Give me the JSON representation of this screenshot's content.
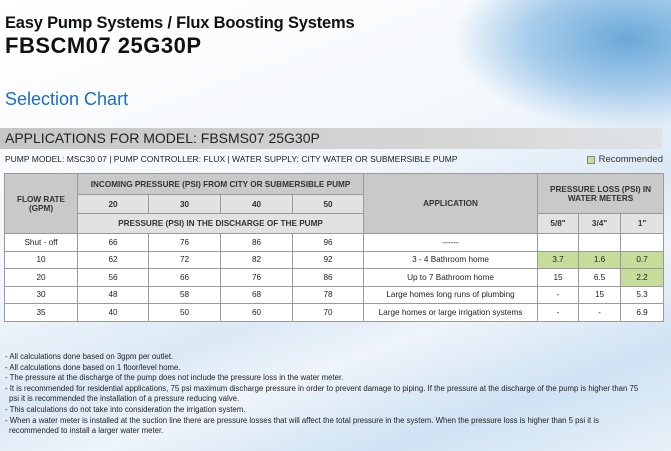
{
  "header": {
    "brand": "Easy Pump Systems / Flux Boosting Systems",
    "model": "FBSCM07 25G30P",
    "subtitle": "Selection Chart"
  },
  "banner": "APPLICATIONS FOR MODEL: FBSMS07 25G30P",
  "info": "PUMP MODEL: MSC30 07 |  PUMP CONTROLLER: FLUX  |  WATER SUPPLY:  CITY WATER OR SUBMERSIBLE PUMP",
  "legend": {
    "label": "Recommended",
    "color": "#c5dc9a"
  },
  "table": {
    "flow_header": "FLOW RATE (GPM)",
    "incoming_header": "INCOMING PRESSURE (PSI) FROM CITY OR SUBMERSIBLE PUMP",
    "incoming_values": [
      "20",
      "30",
      "40",
      "50"
    ],
    "discharge_header": "PRESSURE (PSI) IN THE DISCHARGE OF THE PUMP",
    "application_header": "APPLICATION",
    "loss_header": "PRESSURE LOSS (PSI) IN WATER METERS",
    "meters": [
      "5/8\"",
      "3/4\"",
      "1\""
    ],
    "rows": [
      {
        "flow": "Shut - off",
        "p": [
          "66",
          "76",
          "86",
          "96"
        ],
        "app": "------",
        "loss": [
          "",
          "",
          ""
        ],
        "rec": [
          false,
          false,
          false
        ]
      },
      {
        "flow": "10",
        "p": [
          "62",
          "72",
          "82",
          "92"
        ],
        "app": "3 - 4 Bathroom home",
        "loss": [
          "3.7",
          "1.6",
          "0.7"
        ],
        "rec": [
          true,
          true,
          true
        ]
      },
      {
        "flow": "20",
        "p": [
          "56",
          "66",
          "76",
          "86"
        ],
        "app": "Up to 7 Bathroom home",
        "loss": [
          "15",
          "6.5",
          "2.2"
        ],
        "rec": [
          false,
          false,
          true
        ]
      },
      {
        "flow": "30",
        "p": [
          "48",
          "58",
          "68",
          "78"
        ],
        "app": "Large homes long runs of plumbing",
        "loss": [
          "-",
          "15",
          "5.3"
        ],
        "rec": [
          false,
          false,
          false
        ]
      },
      {
        "flow": "35",
        "p": [
          "40",
          "50",
          "60",
          "70"
        ],
        "app": "Large homes or large irrigation systems",
        "loss": [
          "-",
          "-",
          "6.9"
        ],
        "rec": [
          false,
          false,
          false
        ]
      }
    ]
  },
  "notes": [
    "- All calculations done based on 3gpm per outlet.",
    "- All calculations done based on 1 floor/level home.",
    "- The pressure at the discharge of the pump does not include the pressure loss in the water meter.",
    "- It is recommended for residential applications,  75 psi maximum discharge pressure in order to prevent damage to piping. If the pressure at the discharge of the pump is higher than 75 psi it is recommended the installation of a pressure reducing valve.",
    "- This calculations do not take into consideration the irrigation system.",
    "- When a water meter is installed at the suction line there are pressure losses that will affect the total pressure in the system. When the pressure loss is higher than 5 psi it is recommended to install a larger water meter."
  ]
}
